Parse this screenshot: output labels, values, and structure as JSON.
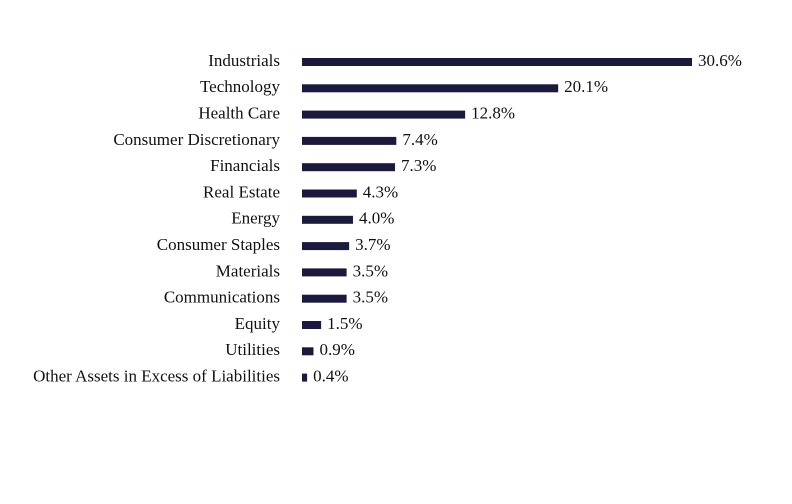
{
  "chart_data": {
    "type": "hbar",
    "categories": [
      "Industrials",
      "Technology",
      "Health Care",
      "Consumer Discretionary",
      "Financials",
      "Real Estate",
      "Energy",
      "Consumer Staples",
      "Materials",
      "Communications",
      "Equity",
      "Utilities",
      "Other Assets in Excess of Liabilities"
    ],
    "values": [
      30.6,
      20.1,
      12.8,
      7.4,
      7.3,
      4.3,
      4.0,
      3.7,
      3.5,
      3.5,
      1.5,
      0.9,
      0.4
    ],
    "value_labels": [
      "30.6%",
      "20.1%",
      "12.8%",
      "7.4%",
      "7.3%",
      "4.3%",
      "4.0%",
      "3.7%",
      "3.5%",
      "3.5%",
      "1.5%",
      "0.9%",
      "0.4%"
    ],
    "color": "#1b1a3c"
  }
}
